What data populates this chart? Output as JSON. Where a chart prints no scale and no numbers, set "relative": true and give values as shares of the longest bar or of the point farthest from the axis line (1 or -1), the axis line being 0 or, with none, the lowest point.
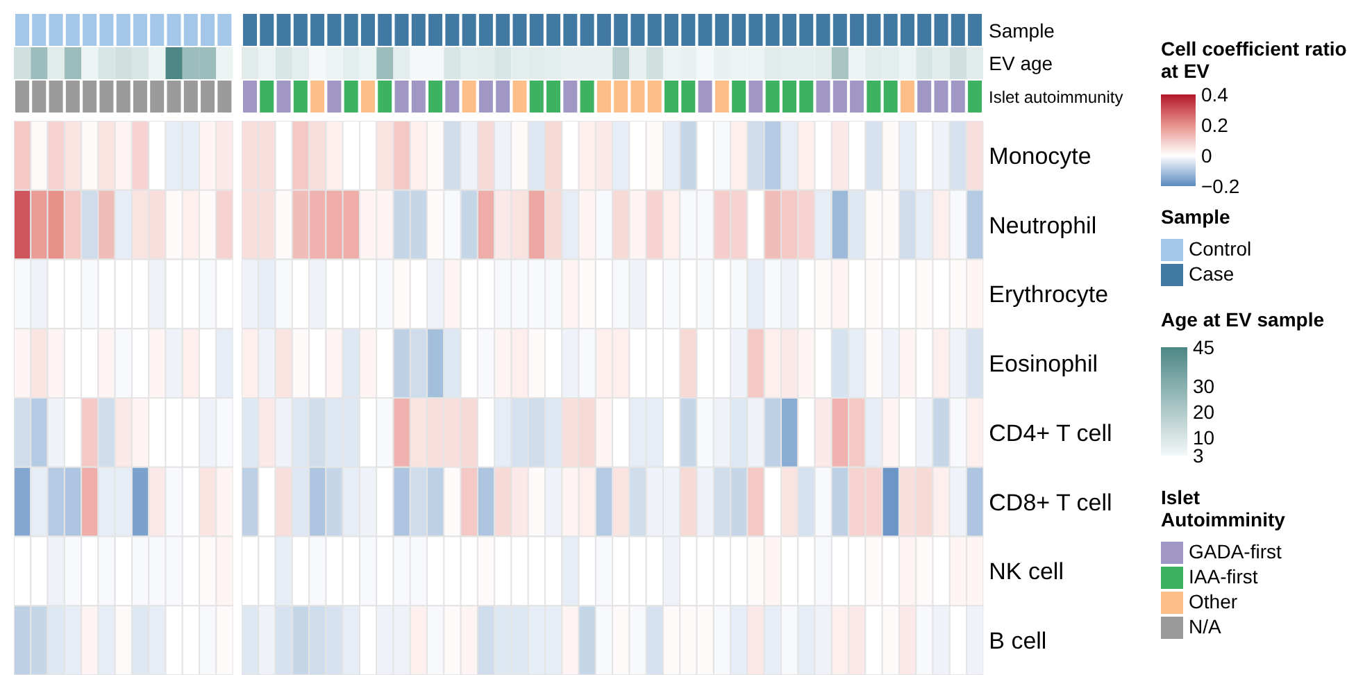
{
  "chart_data": [
    {
      "type": "bar",
      "relative": true,
      "stacked": true,
      "y2label": "Sample",
      "legend_title": "Sample",
      "legend": "right",
      "categories": [
        null,
        null,
        null,
        null,
        null,
        null,
        null,
        null,
        null,
        null,
        null,
        null,
        null,
        null,
        null,
        null,
        null,
        null,
        null,
        null,
        null,
        null,
        null,
        null,
        null,
        null,
        null,
        null,
        null,
        null,
        null,
        null,
        null,
        null,
        null,
        null,
        null,
        null,
        null,
        null,
        null,
        null,
        null,
        null,
        null,
        null,
        null,
        null,
        null,
        null,
        null,
        null,
        null,
        null,
        null,
        null,
        null
      ],
      "series": [
        {
          "name": "Control",
          "color": "#a3c6e9",
          "values": [
            1,
            1,
            1,
            1,
            1,
            1,
            1,
            1,
            1,
            1,
            1,
            1,
            1,
            null,
            null,
            null,
            null,
            null,
            null,
            null,
            null,
            null,
            null,
            null,
            null,
            null,
            null,
            null,
            null,
            null,
            null,
            null,
            null,
            null,
            null,
            null,
            null,
            null,
            null,
            null,
            null,
            null,
            null,
            null,
            null,
            null,
            null,
            null,
            null,
            null,
            null,
            null,
            null,
            null,
            null,
            null,
            null
          ]
        },
        {
          "name": "Case",
          "color": "#4279a3",
          "values": [
            null,
            null,
            null,
            null,
            null,
            null,
            null,
            null,
            null,
            null,
            null,
            null,
            null,
            1,
            1,
            1,
            1,
            1,
            1,
            1,
            1,
            1,
            1,
            1,
            1,
            1,
            1,
            1,
            1,
            1,
            1,
            1,
            1,
            1,
            1,
            1,
            1,
            1,
            1,
            1,
            1,
            1,
            1,
            1,
            1,
            1,
            1,
            1,
            1,
            1,
            1,
            1,
            1,
            1,
            1,
            1,
            1
          ]
        }
      ]
    },
    {
      "type": "heatmap",
      "categories": [
        null,
        null,
        null,
        null,
        null,
        null,
        null,
        null,
        null,
        null,
        null,
        null,
        null,
        null,
        null,
        null,
        null,
        null,
        null,
        null,
        null,
        null,
        null,
        null,
        null,
        null,
        null,
        null,
        null,
        null,
        null,
        null,
        null,
        null,
        null,
        null,
        null,
        null,
        null,
        null,
        null,
        null,
        null,
        null,
        null,
        null,
        null,
        null,
        null,
        null,
        null,
        null,
        null,
        null,
        null,
        null,
        null
      ],
      "y_categories": [
        "EV age"
      ],
      "clabel": "Age at EV sample",
      "clim": [
        3,
        45
      ],
      "cticks": [
        3,
        10,
        20,
        30,
        45
      ],
      "cells": [
        [
          12,
          25,
          8,
          25,
          5,
          10,
          12,
          10,
          5,
          45,
          25,
          25,
          5,
          8,
          5,
          10,
          7,
          3,
          5,
          7,
          5,
          25,
          7,
          3,
          3,
          10,
          7,
          8,
          10,
          7,
          8,
          7,
          6,
          6,
          6,
          18,
          6,
          12,
          5,
          6,
          3,
          6,
          5,
          5,
          8,
          7,
          7,
          8,
          22,
          5,
          8,
          7,
          5,
          10,
          8,
          12,
          8
        ]
      ]
    },
    {
      "type": "bar",
      "relative": true,
      "stacked": true,
      "y2label": "Islet autoimmunity",
      "legend_title": "Islet Autoimminity",
      "legend": "right",
      "categories": [
        null,
        null,
        null,
        null,
        null,
        null,
        null,
        null,
        null,
        null,
        null,
        null,
        null,
        null,
        null,
        null,
        null,
        null,
        null,
        null,
        null,
        null,
        null,
        null,
        null,
        null,
        null,
        null,
        null,
        null,
        null,
        null,
        null,
        null,
        null,
        null,
        null,
        null,
        null,
        null,
        null,
        null,
        null,
        null,
        null,
        null,
        null,
        null,
        null,
        null,
        null,
        null,
        null,
        null,
        null,
        null,
        null
      ],
      "series": [
        {
          "name": "GADA-first",
          "color": "#a097c5",
          "values": [
            null,
            null,
            null,
            null,
            null,
            null,
            null,
            null,
            null,
            null,
            null,
            null,
            null,
            1,
            null,
            1,
            null,
            null,
            1,
            null,
            null,
            null,
            1,
            1,
            null,
            1,
            null,
            1,
            1,
            null,
            null,
            null,
            1,
            null,
            null,
            null,
            null,
            null,
            null,
            null,
            1,
            null,
            null,
            1,
            null,
            null,
            null,
            1,
            1,
            1,
            null,
            null,
            null,
            1,
            1,
            1,
            null
          ]
        },
        {
          "name": "IAA-first",
          "color": "#3db260",
          "values": [
            null,
            null,
            null,
            null,
            null,
            null,
            null,
            null,
            null,
            null,
            null,
            null,
            null,
            null,
            1,
            null,
            1,
            null,
            null,
            1,
            null,
            1,
            null,
            null,
            1,
            null,
            null,
            null,
            null,
            null,
            1,
            1,
            null,
            1,
            null,
            null,
            null,
            null,
            1,
            1,
            null,
            null,
            1,
            null,
            1,
            1,
            1,
            null,
            null,
            null,
            1,
            1,
            null,
            null,
            null,
            null,
            1
          ]
        },
        {
          "name": "Other",
          "color": "#fdbf87",
          "values": [
            null,
            null,
            null,
            null,
            null,
            null,
            null,
            null,
            null,
            null,
            null,
            null,
            null,
            null,
            null,
            null,
            null,
            1,
            null,
            null,
            1,
            null,
            null,
            null,
            null,
            null,
            1,
            null,
            null,
            1,
            null,
            null,
            null,
            null,
            1,
            1,
            1,
            1,
            null,
            null,
            null,
            1,
            null,
            null,
            null,
            null,
            null,
            null,
            null,
            null,
            null,
            null,
            1,
            null,
            null,
            null,
            null
          ]
        },
        {
          "name": "N/A",
          "color": "#9b9b9b",
          "values": [
            1,
            1,
            1,
            1,
            1,
            1,
            1,
            1,
            1,
            1,
            1,
            1,
            1,
            null,
            null,
            null,
            null,
            null,
            null,
            null,
            null,
            null,
            null,
            null,
            null,
            null,
            null,
            null,
            null,
            null,
            null,
            null,
            null,
            null,
            null,
            null,
            null,
            null,
            null,
            null,
            null,
            null,
            null,
            null,
            null,
            null,
            null,
            null,
            null,
            null,
            null,
            null,
            null,
            null,
            null,
            null,
            null
          ]
        }
      ]
    },
    {
      "type": "heatmap",
      "categories": [
        null,
        null,
        null,
        null,
        null,
        null,
        null,
        null,
        null,
        null,
        null,
        null,
        null,
        null,
        null,
        null,
        null,
        null,
        null,
        null,
        null,
        null,
        null,
        null,
        null,
        null,
        null,
        null,
        null,
        null,
        null,
        null,
        null,
        null,
        null,
        null,
        null,
        null,
        null,
        null,
        null,
        null,
        null,
        null,
        null,
        null,
        null,
        null,
        null,
        null,
        null,
        null,
        null,
        null,
        null,
        null,
        null
      ],
      "y_categories": [
        "Monocyte",
        "Neutrophil",
        "Erythrocyte",
        "Eosinophil",
        "CD4+ T cell",
        "CD8+ T cell",
        "NK cell",
        "B cell"
      ],
      "clabel": "Cell coefficient ratio at EV",
      "clim": [
        -0.2,
        0.4
      ],
      "cticks": [
        -0.2,
        0,
        0.2,
        0.4
      ],
      "cells": [
        [
          0.1,
          0.01,
          0.08,
          0.05,
          0.01,
          0.05,
          0.02,
          0.08,
          0,
          -0.03,
          -0.03,
          0.02,
          0.04,
          0.06,
          0.06,
          0,
          0.1,
          0.06,
          0.03,
          0,
          0,
          0.05,
          0.1,
          0.03,
          0.01,
          -0.06,
          -0.02,
          0.07,
          -0.02,
          0.01,
          -0.04,
          0.07,
          0,
          0.03,
          0.04,
          -0.03,
          0,
          0.01,
          -0.03,
          -0.07,
          0,
          -0.01,
          0.03,
          -0.06,
          -0.09,
          -0.03,
          0.03,
          0,
          0.04,
          0,
          -0.05,
          0.01,
          -0.03,
          0,
          -0.02,
          -0.05,
          0.06
        ],
        [
          0.3,
          0.18,
          0.2,
          0.1,
          -0.06,
          0.12,
          -0.03,
          0.05,
          0.06,
          0.01,
          0.03,
          0.01,
          0.08,
          0.06,
          0.06,
          0.01,
          0.12,
          0.14,
          0.15,
          0.15,
          0.02,
          0.02,
          -0.07,
          -0.07,
          0.01,
          -0.01,
          -0.07,
          0.15,
          0.04,
          0.05,
          0.16,
          0.07,
          -0.03,
          0.02,
          -0.01,
          0.07,
          0.02,
          0.08,
          0.03,
          -0.01,
          -0.01,
          0.09,
          0.08,
          0,
          0.12,
          0.1,
          0.08,
          -0.03,
          -0.12,
          -0.04,
          0.01,
          0.01,
          -0.06,
          -0.03,
          0.03,
          -0.01,
          -0.09
        ],
        [
          -0.01,
          -0.02,
          0,
          0,
          -0.01,
          0,
          0,
          0,
          -0.02,
          0,
          0,
          -0.01,
          0,
          -0.02,
          -0.03,
          -0.01,
          0,
          -0.02,
          0,
          0,
          0,
          -0.01,
          0.01,
          0,
          -0.02,
          0.02,
          0,
          0,
          -0.01,
          -0.01,
          -0.01,
          -0.01,
          0.02,
          0.01,
          0,
          -0.01,
          -0.02,
          0,
          -0.01,
          0,
          -0.01,
          0,
          -0.01,
          -0.03,
          -0.01,
          -0.02,
          0,
          0.01,
          0.02,
          0,
          0.01,
          0,
          0,
          0.01,
          0,
          0.01,
          0.02
        ],
        [
          0.02,
          0.05,
          0.02,
          0,
          0,
          0.02,
          -0.01,
          0,
          0.02,
          -0.02,
          0.03,
          0,
          -0.03,
          0.03,
          -0.02,
          0.05,
          0.01,
          0,
          0.02,
          -0.04,
          0.02,
          0,
          -0.08,
          -0.06,
          -0.11,
          -0.04,
          0,
          -0.01,
          0.02,
          0.03,
          0.01,
          0,
          -0.02,
          -0.01,
          0.03,
          0.03,
          0,
          0,
          0,
          0.07,
          0,
          0,
          -0.02,
          0.1,
          0.03,
          0.04,
          0.02,
          0,
          -0.05,
          -0.03,
          0.01,
          -0.02,
          0.02,
          0,
          0.03,
          -0.02,
          -0.05
        ],
        [
          -0.06,
          -0.09,
          -0.02,
          0,
          0.1,
          -0.06,
          0.04,
          0.02,
          0,
          0,
          0,
          -0.02,
          -0.01,
          -0.04,
          0.04,
          -0.02,
          -0.04,
          -0.06,
          -0.04,
          -0.04,
          0,
          -0.01,
          0.14,
          0.05,
          0.06,
          0.06,
          0.07,
          0,
          -0.03,
          -0.05,
          -0.06,
          -0.04,
          0.06,
          0.07,
          0.02,
          0,
          -0.03,
          -0.03,
          0,
          -0.07,
          -0.01,
          -0.02,
          -0.04,
          -0.02,
          -0.08,
          -0.14,
          0,
          0.04,
          0.14,
          0.1,
          -0.03,
          0.02,
          0,
          -0.02,
          -0.07,
          -0.01,
          0.03
        ],
        [
          -0.15,
          -0.03,
          -0.09,
          -0.1,
          0.15,
          -0.03,
          -0.03,
          -0.16,
          0.04,
          -0.01,
          0,
          0.05,
          0.02,
          -0.08,
          0,
          0.06,
          -0.04,
          -0.1,
          -0.07,
          -0.03,
          -0.02,
          0,
          -0.1,
          -0.06,
          -0.08,
          0.01,
          0.1,
          -0.1,
          0.07,
          0.04,
          0.01,
          -0.02,
          0.02,
          0.03,
          -0.09,
          0.05,
          -0.06,
          -0.02,
          -0.02,
          0.07,
          -0.02,
          -0.06,
          -0.07,
          0.1,
          0,
          0.05,
          -0.05,
          -0.01,
          -0.08,
          0.08,
          0.08,
          -0.18,
          0.06,
          0.07,
          0.03,
          -0.02,
          -0.1
        ],
        [
          0,
          0,
          -0.02,
          -0.01,
          0,
          -0.01,
          0,
          -0.01,
          -0.01,
          -0.01,
          0,
          0.01,
          0.02,
          0,
          0,
          -0.03,
          0,
          -0.01,
          0,
          0,
          -0.01,
          0,
          -0.01,
          -0.01,
          0,
          0,
          0,
          0.01,
          0,
          0,
          0,
          0,
          -0.03,
          0,
          -0.01,
          0,
          0,
          0,
          -0.02,
          0,
          0,
          0,
          0,
          0.01,
          0.02,
          0,
          0,
          -0.01,
          0,
          0,
          0.01,
          0,
          0.02,
          0.01,
          0,
          0.02,
          0.02
        ],
        [
          -0.08,
          -0.07,
          -0.04,
          -0.03,
          0.02,
          -0.03,
          0.01,
          -0.04,
          -0.03,
          0,
          0,
          -0.01,
          0.01,
          -0.04,
          -0.02,
          -0.05,
          -0.07,
          -0.06,
          -0.05,
          -0.03,
          0,
          -0.02,
          -0.02,
          0.03,
          -0.01,
          0.01,
          0.02,
          -0.06,
          -0.04,
          -0.04,
          -0.03,
          -0.03,
          0.02,
          -0.07,
          -0.01,
          0.01,
          -0.01,
          -0.05,
          0.01,
          0.01,
          0.01,
          -0.01,
          -0.03,
          0.04,
          -0.03,
          -0.01,
          -0.03,
          -0.02,
          0.03,
          0.04,
          0,
          0.01,
          0.04,
          -0.01,
          -0.02,
          0,
          -0.02
        ]
      ]
    }
  ]
}
